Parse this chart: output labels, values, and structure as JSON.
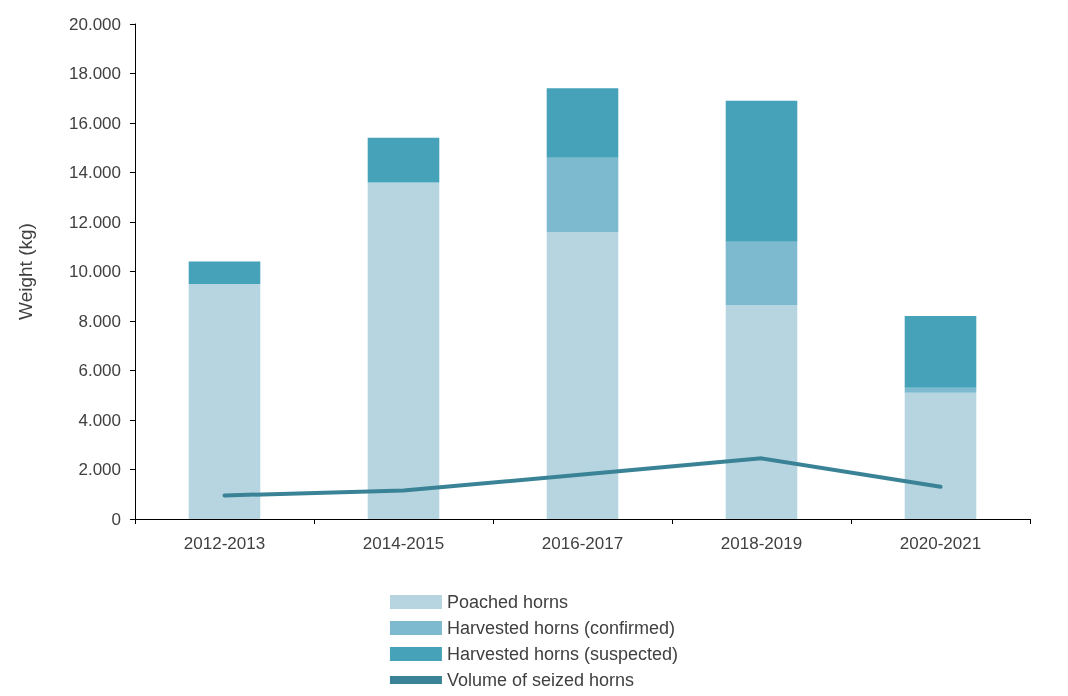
{
  "chart_data": {
    "type": "bar",
    "ylabel": "Weight (kg)",
    "categories": [
      "2012-2013",
      "2014-2015",
      "2016-2017",
      "2018-2019",
      "2020-2021"
    ],
    "stacked": true,
    "series": [
      {
        "name": "Poached horns",
        "color": "#b7d5e0",
        "values": [
          9500,
          13600,
          11600,
          8650,
          5100
        ]
      },
      {
        "name": "Harvested horns (confirmed)",
        "color": "#7db9cf",
        "values": [
          null,
          null,
          3000,
          2550,
          200
        ]
      },
      {
        "name": "Harvested horns (suspected)",
        "color": "#45a2b9",
        "values": [
          900,
          1800,
          2800,
          5700,
          2900
        ]
      },
      {
        "name": "Volume of seized horns",
        "color": "#3a8396",
        "type": "line",
        "values": [
          950,
          1150,
          1800,
          2450,
          1300
        ]
      }
    ],
    "ylim": [
      0,
      20000
    ],
    "yticks": [
      0,
      {
        "value": 2000,
        "label": "2.000"
      },
      {
        "value": 4000,
        "label": "4.000"
      },
      {
        "value": 6000,
        "label": "6.000"
      },
      {
        "value": 8000,
        "label": "8.000"
      },
      {
        "value": 10000,
        "label": "10.000"
      },
      {
        "value": 12000,
        "label": "12.000"
      },
      {
        "value": 14000,
        "label": "14.000"
      },
      {
        "value": 16000,
        "label": "16.000"
      },
      {
        "value": 18000,
        "label": "18.000"
      },
      {
        "value": 20000,
        "label": "20.000"
      }
    ],
    "grid": false,
    "legend": "bottom"
  }
}
